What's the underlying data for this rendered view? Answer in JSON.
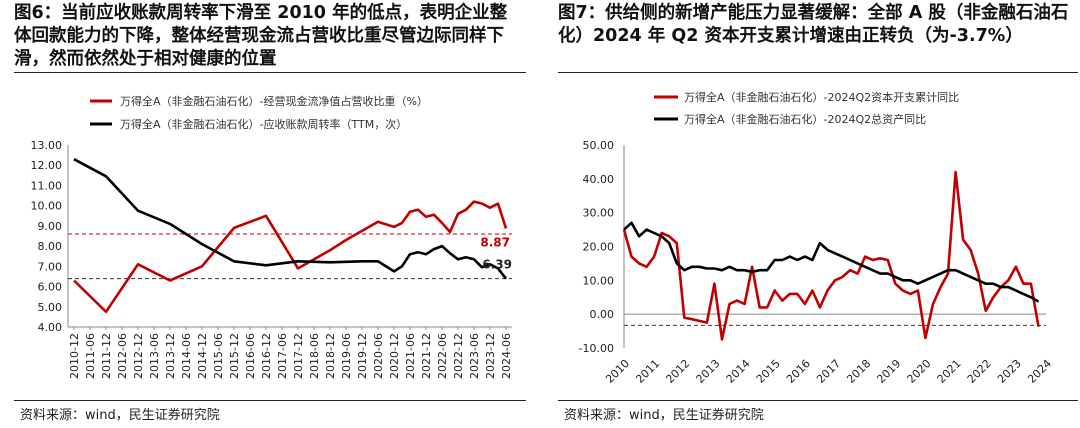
{
  "figures": [
    {
      "title": "图6：当前应收账款周转率下滑至 2010 年的低点，表明企业整体回款能力的下降，整体经营现金流占营收比重尽管边际同样下滑，然而依然处于相对健康的位置",
      "source": "资料来源：wind，民生证券研究院"
    },
    {
      "title": "图7：供给侧的新增产能压力显著缓解：全部 A 股（非金融石油石化）2024 年 Q2 资本开支累计增速由正转负（为-3.7%）",
      "source": "资料来源：wind，民生证券研究院"
    }
  ],
  "chart_data": [
    {
      "type": "line",
      "title": "",
      "xlabel": "",
      "ylabel": "",
      "ylim": [
        4.0,
        13.0
      ],
      "yticks": [
        "13.00",
        "12.00",
        "11.00",
        "10.00",
        "9.00",
        "8.00",
        "7.00",
        "6.00",
        "5.00",
        "4.00"
      ],
      "x_tick_labels": [
        "2010-12",
        "2011-06",
        "2011-12",
        "2012-06",
        "2012-12",
        "2013-06",
        "2013-12",
        "2014-06",
        "2014-12",
        "2015-06",
        "2015-12",
        "2016-06",
        "2016-12",
        "2017-06",
        "2017-12",
        "2018-06",
        "2018-12",
        "2019-06",
        "2019-12",
        "2020-06",
        "2020-12",
        "2021-06",
        "2021-12",
        "2022-06",
        "2022-12",
        "2023-06",
        "2023-12",
        "2024-06"
      ],
      "grid": false,
      "legend_position": "top-left",
      "series": [
        {
          "name": "万得全A（非金融石油石化）-经营现金流净值占营收比重（%）",
          "color": "#c00000",
          "points": [
            [
              0,
              6.3
            ],
            [
              2,
              4.75
            ],
            [
              4,
              7.1
            ],
            [
              6,
              6.3
            ],
            [
              8,
              7.0
            ],
            [
              10,
              8.9
            ],
            [
              12,
              9.5
            ],
            [
              14,
              6.9
            ],
            [
              16,
              7.8
            ],
            [
              17,
              8.3
            ],
            [
              19,
              9.2
            ],
            [
              20,
              8.95
            ],
            [
              20.5,
              9.15
            ],
            [
              21,
              9.7
            ],
            [
              21.5,
              9.8
            ],
            [
              22,
              9.45
            ],
            [
              22.5,
              9.55
            ],
            [
              23,
              9.15
            ],
            [
              23.5,
              8.7
            ],
            [
              24,
              9.6
            ],
            [
              24.5,
              9.8
            ],
            [
              25,
              10.2
            ],
            [
              25.5,
              10.1
            ],
            [
              26,
              9.9
            ],
            [
              26.5,
              10.1
            ],
            [
              27,
              8.87
            ]
          ]
        },
        {
          "name": "万得全A（非金融石油石化）-应收账款周转率（TTM，次）",
          "color": "#000000",
          "points": [
            [
              0,
              12.3
            ],
            [
              2,
              11.45
            ],
            [
              4,
              9.75
            ],
            [
              6,
              9.1
            ],
            [
              8,
              8.1
            ],
            [
              10,
              7.25
            ],
            [
              12,
              7.05
            ],
            [
              14,
              7.25
            ],
            [
              16,
              7.2
            ],
            [
              18,
              7.25
            ],
            [
              19,
              7.25
            ],
            [
              20,
              6.75
            ],
            [
              20.5,
              7.0
            ],
            [
              21,
              7.6
            ],
            [
              21.5,
              7.7
            ],
            [
              22,
              7.6
            ],
            [
              22.5,
              7.85
            ],
            [
              23,
              8.0
            ],
            [
              23.5,
              7.65
            ],
            [
              24,
              7.35
            ],
            [
              24.5,
              7.45
            ],
            [
              25,
              7.35
            ],
            [
              25.5,
              6.95
            ],
            [
              26,
              7.1
            ],
            [
              26.5,
              6.9
            ],
            [
              27,
              6.39
            ]
          ]
        }
      ],
      "reference_lines": [
        {
          "value": 8.6,
          "color": "#c00000"
        },
        {
          "value": 6.39,
          "color": "#333333"
        }
      ],
      "annotations": [
        {
          "text": "8.87",
          "color": "#c00000"
        },
        {
          "text": "6.39",
          "color": "#222222"
        }
      ]
    },
    {
      "type": "line",
      "title": "",
      "xlabel": "",
      "ylabel": "",
      "ylim": [
        -10.0,
        50.0
      ],
      "yticks": [
        "50.00",
        "40.00",
        "30.00",
        "20.00",
        "10.00",
        "0.00",
        "-10.00"
      ],
      "x_tick_labels": [
        "2010",
        "2011",
        "2012",
        "2013",
        "2014",
        "2015",
        "2016",
        "2017",
        "2018",
        "2019",
        "2020",
        "2021",
        "2022",
        "2023",
        "2024"
      ],
      "grid": false,
      "legend_position": "top-left",
      "series": [
        {
          "name": "万得全A（非金融石油石化）-2024Q2资本开支累计同比",
          "color": "#c00000",
          "points": [
            [
              2010.0,
              25
            ],
            [
              2010.25,
              17
            ],
            [
              2010.5,
              15
            ],
            [
              2010.75,
              14
            ],
            [
              2011.0,
              17
            ],
            [
              2011.25,
              24
            ],
            [
              2011.5,
              23
            ],
            [
              2011.75,
              21
            ],
            [
              2012.0,
              -1
            ],
            [
              2012.25,
              -1.5
            ],
            [
              2012.5,
              -2
            ],
            [
              2012.75,
              -2.5
            ],
            [
              2013.0,
              9
            ],
            [
              2013.25,
              -7.5
            ],
            [
              2013.5,
              3
            ],
            [
              2013.75,
              4
            ],
            [
              2014.0,
              3
            ],
            [
              2014.25,
              14
            ],
            [
              2014.5,
              2
            ],
            [
              2014.75,
              2
            ],
            [
              2015.0,
              7
            ],
            [
              2015.25,
              4
            ],
            [
              2015.5,
              6
            ],
            [
              2015.75,
              6
            ],
            [
              2016.0,
              3
            ],
            [
              2016.25,
              7
            ],
            [
              2016.5,
              2
            ],
            [
              2016.75,
              7
            ],
            [
              2017.0,
              10
            ],
            [
              2017.25,
              11
            ],
            [
              2017.5,
              13
            ],
            [
              2017.75,
              12
            ],
            [
              2018.0,
              17
            ],
            [
              2018.25,
              16
            ],
            [
              2018.5,
              16.5
            ],
            [
              2018.75,
              16
            ],
            [
              2019.0,
              9
            ],
            [
              2019.25,
              7
            ],
            [
              2019.5,
              6
            ],
            [
              2019.75,
              7
            ],
            [
              2020.0,
              -7
            ],
            [
              2020.25,
              3
            ],
            [
              2020.5,
              8
            ],
            [
              2020.75,
              12
            ],
            [
              2021.0,
              42
            ],
            [
              2021.25,
              22
            ],
            [
              2021.5,
              19
            ],
            [
              2021.75,
              12
            ],
            [
              2022.0,
              1
            ],
            [
              2022.25,
              5
            ],
            [
              2022.5,
              8
            ],
            [
              2022.75,
              10
            ],
            [
              2023.0,
              14
            ],
            [
              2023.25,
              9
            ],
            [
              2023.5,
              9
            ],
            [
              2023.75,
              -3.7
            ]
          ]
        },
        {
          "name": "万得全A（非金融石油石化）-2024Q2总资产同比",
          "color": "#000000",
          "points": [
            [
              2010.0,
              25
            ],
            [
              2010.25,
              27
            ],
            [
              2010.5,
              23
            ],
            [
              2010.75,
              25
            ],
            [
              2011.0,
              24
            ],
            [
              2011.25,
              23
            ],
            [
              2011.5,
              21
            ],
            [
              2011.75,
              15
            ],
            [
              2012.0,
              13
            ],
            [
              2012.25,
              14
            ],
            [
              2012.5,
              14
            ],
            [
              2012.75,
              13.5
            ],
            [
              2013.0,
              13.5
            ],
            [
              2013.25,
              13
            ],
            [
              2013.5,
              14
            ],
            [
              2013.75,
              13
            ],
            [
              2014.0,
              13
            ],
            [
              2014.25,
              12.5
            ],
            [
              2014.5,
              13
            ],
            [
              2014.75,
              13
            ],
            [
              2015.0,
              16
            ],
            [
              2015.25,
              16
            ],
            [
              2015.5,
              17
            ],
            [
              2015.75,
              16
            ],
            [
              2016.0,
              17
            ],
            [
              2016.25,
              16
            ],
            [
              2016.5,
              21
            ],
            [
              2016.75,
              19
            ],
            [
              2017.0,
              18
            ],
            [
              2017.25,
              17
            ],
            [
              2017.5,
              16
            ],
            [
              2017.75,
              15
            ],
            [
              2018.0,
              14
            ],
            [
              2018.25,
              13
            ],
            [
              2018.5,
              12
            ],
            [
              2018.75,
              12
            ],
            [
              2019.0,
              11
            ],
            [
              2019.25,
              10
            ],
            [
              2019.5,
              10
            ],
            [
              2019.75,
              9
            ],
            [
              2020.0,
              10
            ],
            [
              2020.25,
              11
            ],
            [
              2020.5,
              12
            ],
            [
              2020.75,
              13
            ],
            [
              2021.0,
              13
            ],
            [
              2021.25,
              12
            ],
            [
              2021.5,
              11
            ],
            [
              2021.75,
              10
            ],
            [
              2022.0,
              9
            ],
            [
              2022.25,
              9
            ],
            [
              2022.5,
              8
            ],
            [
              2022.75,
              8
            ],
            [
              2023.0,
              7
            ],
            [
              2023.25,
              6
            ],
            [
              2023.5,
              5
            ],
            [
              2023.75,
              3.7
            ]
          ]
        }
      ],
      "reference_lines": [
        {
          "value": -3.3,
          "color": "#c00000"
        }
      ],
      "annotations": []
    }
  ]
}
